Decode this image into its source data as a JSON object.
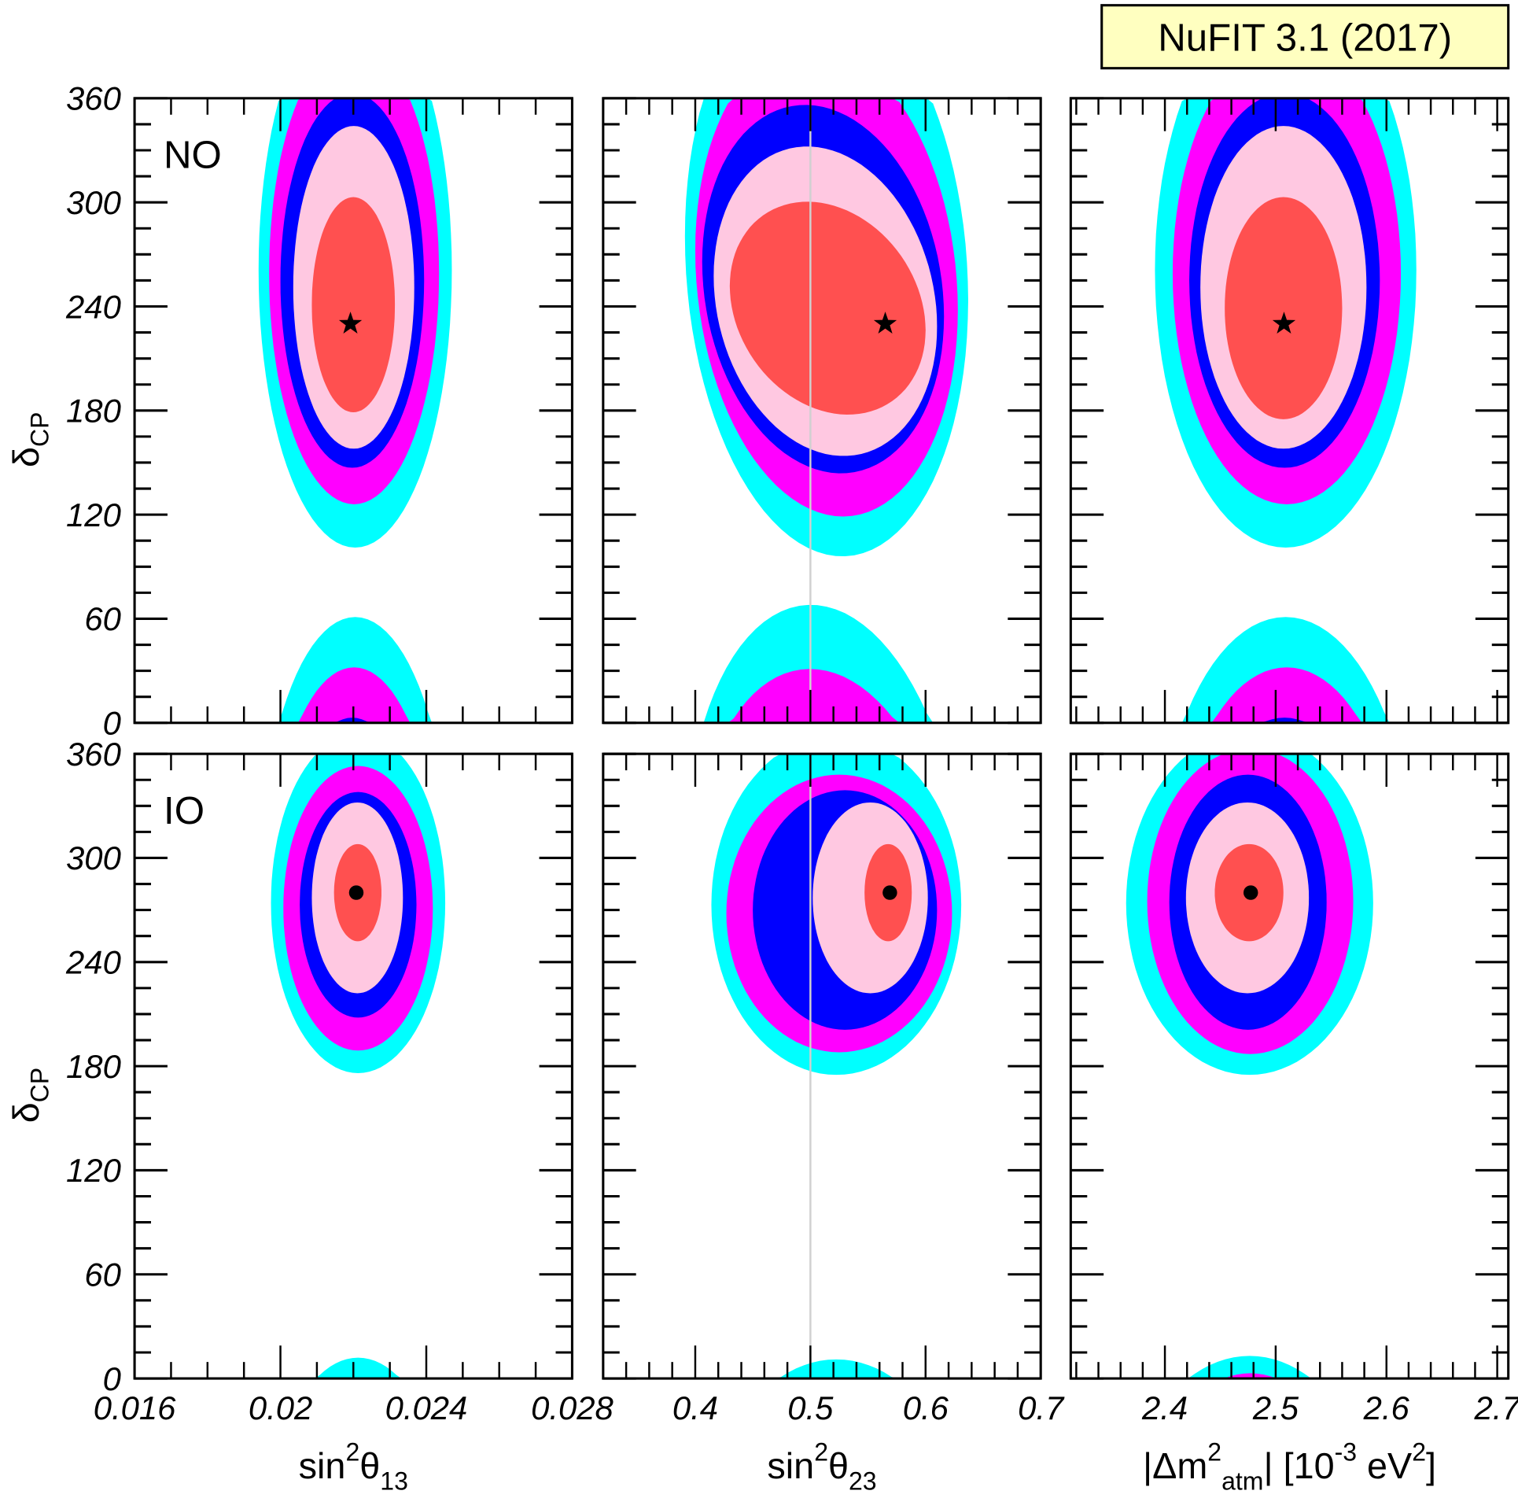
{
  "chart_data": {
    "type": "contour",
    "badge": "NuFIT 3.1 (2017)",
    "ylabel": {
      "main": "δ",
      "sub": "CP"
    },
    "ylim": [
      0,
      360
    ],
    "yticks": [
      0,
      60,
      120,
      180,
      240,
      300,
      360
    ],
    "yminor_step": 15,
    "colors": {
      "cyan": "#00ffff",
      "magenta": "#ff00ff",
      "blue": "#0000ff",
      "pink": "#ffc8e1",
      "red": "#ff5050",
      "ref_line": "#d0d0d0",
      "badge_bg": "#ffffc0"
    },
    "columns": [
      {
        "xlabel": {
          "main": "sin",
          "sup": "2",
          "greek": "θ",
          "sub": "13",
          "rest": ""
        },
        "xlim": [
          0.016,
          0.028
        ],
        "xticks": [
          0.016,
          0.02,
          0.024,
          0.028
        ],
        "xtick_labels": [
          "0.016",
          "0.02",
          "0.024",
          "0.028"
        ],
        "xminor_step": 0.001
      },
      {
        "xlabel": {
          "main": "sin",
          "sup": "2",
          "greek": "θ",
          "sub": "23",
          "rest": ""
        },
        "xlim": [
          0.32,
          0.7
        ],
        "xticks": [
          0.4,
          0.5,
          0.6,
          0.7
        ],
        "xtick_labels": [
          "0.4",
          "0.5",
          "0.6",
          "0.7"
        ],
        "xminor_step": 0.02,
        "ref_line_x": 0.5
      },
      {
        "xlabel": {
          "main": "|Δm",
          "sup": "2",
          "sub": "atm",
          "rest": "| [10",
          "sup2": "-3",
          "rest2": " eV",
          "sup3": "2",
          "rest3": "]"
        },
        "xlim": [
          2.315,
          2.71
        ],
        "xticks": [
          2.4,
          2.5,
          2.6,
          2.7
        ],
        "xtick_labels": [
          "2.4",
          "2.5",
          "2.6",
          "2.7"
        ],
        "xminor_step": 0.02
      }
    ],
    "rows": [
      {
        "label": "NO",
        "marker": "star",
        "panels": [
          {
            "best_fit": [
              0.02192,
              230
            ],
            "contours": [
              {
                "color": "cyan",
                "cx": 0.02205,
                "cy": 261,
                "rx": 0.00265,
                "ry": 160
              },
              {
                "color": "magenta",
                "cx": 0.02202,
                "cy": 259,
                "rx": 0.00233,
                "ry": 133
              },
              {
                "color": "blue",
                "cx": 0.02197,
                "cy": 255,
                "rx": 0.00197,
                "ry": 108
              },
              {
                "color": "pink",
                "cx": 0.02201,
                "cy": 251,
                "rx": 0.00166,
                "ry": 93
              },
              {
                "color": "red",
                "cx": 0.022,
                "cy": 241,
                "rx": 0.00114,
                "ry": 62
              }
            ]
          },
          {
            "best_fit": [
              0.565,
              230
            ],
            "shear": -150,
            "contours": [
              {
                "color": "cyan",
                "cx": 0.514,
                "cy": 262,
                "rx": 0.123,
                "ry": 165
              },
              {
                "color": "magenta",
                "cx": 0.514,
                "cy": 255,
                "rx": 0.114,
                "ry": 135
              },
              {
                "color": "blue",
                "cx": 0.511,
                "cy": 250,
                "rx": 0.105,
                "ry": 105
              },
              {
                "color": "pink",
                "cx": 0.513,
                "cy": 243,
                "rx": 0.097,
                "ry": 88
              },
              {
                "color": "red",
                "cx": 0.515,
                "cy": 239,
                "rx": 0.085,
                "ry": 60
              }
            ]
          },
          {
            "best_fit": [
              2.5075,
              230
            ],
            "contours": [
              {
                "color": "cyan",
                "cx": 2.509,
                "cy": 261,
                "rx": 0.118,
                "ry": 160
              },
              {
                "color": "magenta",
                "cx": 2.51,
                "cy": 259,
                "rx": 0.103,
                "ry": 133
              },
              {
                "color": "blue",
                "cx": 2.508,
                "cy": 255,
                "rx": 0.086,
                "ry": 108
              },
              {
                "color": "pink",
                "cx": 2.507,
                "cy": 251,
                "rx": 0.075,
                "ry": 93
              },
              {
                "color": "red",
                "cx": 2.507,
                "cy": 239,
                "rx": 0.053,
                "ry": 64
              }
            ]
          }
        ]
      },
      {
        "label": "IO",
        "marker": "dot",
        "panels": [
          {
            "best_fit": [
              0.02208,
              280
            ],
            "contours": [
              {
                "color": "cyan",
                "cx": 0.02213,
                "cy": 274,
                "rx": 0.00239,
                "ry": 98
              },
              {
                "color": "magenta",
                "cx": 0.02213,
                "cy": 271,
                "rx": 0.00205,
                "ry": 82
              },
              {
                "color": "blue",
                "cx": 0.02213,
                "cy": 273,
                "rx": 0.0016,
                "ry": 65
              },
              {
                "color": "pink",
                "cx": 0.02211,
                "cy": 277,
                "rx": 0.00125,
                "ry": 55
              },
              {
                "color": "red",
                "cx": 0.02212,
                "cy": 280,
                "rx": 0.00065,
                "ry": 28
              }
            ]
          },
          {
            "best_fit": [
              0.569,
              280
            ],
            "contours": [
              {
                "color": "cyan",
                "cx": 0.5225,
                "cy": 273,
                "rx": 0.1085,
                "ry": 98
              },
              {
                "color": "magenta",
                "cx": 0.525,
                "cy": 268,
                "rx": 0.098,
                "ry": 80
              },
              {
                "color": "blue",
                "cx": 0.53,
                "cy": 270,
                "rx": 0.08,
                "ry": 69
              },
              {
                "color": "pink",
                "cx": 0.552,
                "cy": 277,
                "rx": 0.05,
                "ry": 55
              },
              {
                "color": "red",
                "cx": 0.5675,
                "cy": 280,
                "rx": 0.0205,
                "ry": 28
              }
            ]
          },
          {
            "best_fit": [
              2.4775,
              280
            ],
            "contours": [
              {
                "color": "cyan",
                "cx": 2.4765,
                "cy": 274,
                "rx": 0.1115,
                "ry": 99
              },
              {
                "color": "magenta",
                "cx": 2.477,
                "cy": 275,
                "rx": 0.093,
                "ry": 88
              },
              {
                "color": "blue",
                "cx": 2.475,
                "cy": 274.5,
                "rx": 0.071,
                "ry": 73.5
              },
              {
                "color": "pink",
                "cx": 2.4745,
                "cy": 277,
                "rx": 0.0555,
                "ry": 55
              },
              {
                "color": "red",
                "cx": 2.476,
                "cy": 280,
                "rx": 0.031,
                "ry": 28
              }
            ]
          }
        ]
      }
    ]
  }
}
